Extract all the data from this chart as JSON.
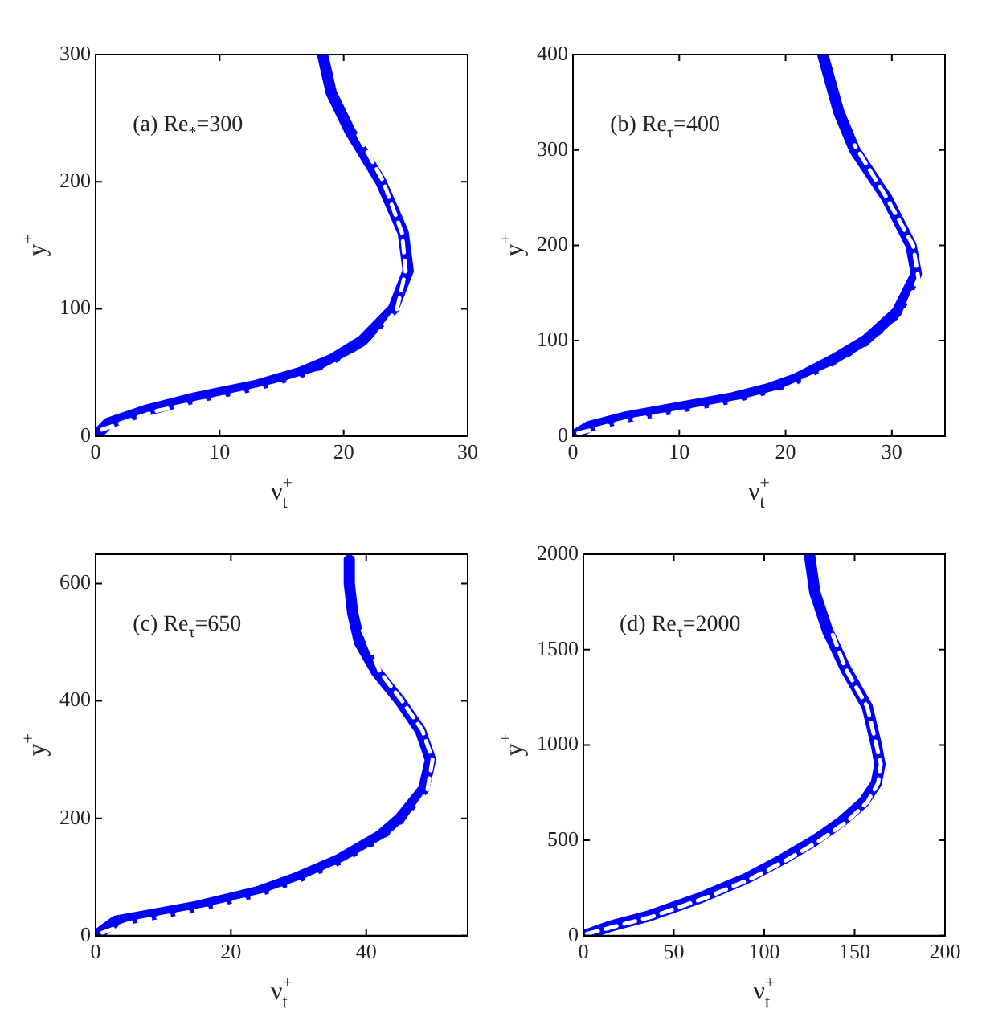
{
  "chart_data": [
    {
      "type": "line",
      "xlabel": "ν$_{t}$$^{+}$",
      "ylabel": "y$^{+}$",
      "annotations": [
        "(a) Re$_{*}$=300"
      ],
      "xlim": [
        0,
        30
      ],
      "xticks": [
        0,
        10,
        20,
        30
      ],
      "ylim": [
        0,
        300
      ],
      "yticks": [
        0,
        100,
        200,
        300
      ],
      "series": [
        {
          "color": "#0000ff",
          "line_style": "solid",
          "x": [
            0,
            1,
            4,
            8,
            13,
            16.5,
            19,
            21.5,
            24,
            25.2,
            24.8,
            23,
            20.5,
            19,
            18.3
          ],
          "values": [
            0,
            10,
            20,
            30,
            40,
            50,
            60,
            75,
            100,
            130,
            160,
            200,
            240,
            270,
            300
          ]
        },
        {
          "color": "#ffffff",
          "line_style": "dashed",
          "x": [
            0.5,
            5,
            10,
            14.5,
            18,
            22,
            24.3,
            25,
            24.7,
            23.2,
            21
          ],
          "values": [
            5,
            20,
            30,
            40,
            50,
            70,
            100,
            130,
            160,
            200,
            240
          ]
        }
      ]
    },
    {
      "type": "line",
      "xlabel": "ν$_{t}$$^{+}$",
      "ylabel": "y$^{+}$",
      "annotations": [
        "(b) Re$_{τ}$=400"
      ],
      "xlim": [
        0,
        35
      ],
      "xticks": [
        0,
        10,
        20,
        30
      ],
      "ylim": [
        0,
        400
      ],
      "yticks": [
        0,
        100,
        200,
        300,
        400
      ],
      "series": [
        {
          "color": "#0000ff",
          "line_style": "solid",
          "x": [
            0,
            1.5,
            5,
            10,
            15,
            18.5,
            21,
            24.5,
            27.5,
            30.5,
            32.3,
            31.8,
            29.5,
            26.5,
            25,
            23.5
          ],
          "values": [
            0,
            10,
            20,
            30,
            40,
            50,
            60,
            80,
            100,
            130,
            170,
            200,
            250,
            300,
            340,
            400
          ]
        },
        {
          "color": "#ffffff",
          "line_style": "dashed",
          "x": [
            0.5,
            5.5,
            11,
            16,
            19.5,
            25,
            28,
            31,
            32.5,
            32,
            29.5,
            26.5
          ],
          "values": [
            3,
            17,
            27,
            37,
            47,
            75,
            95,
            125,
            165,
            200,
            250,
            305
          ]
        }
      ]
    },
    {
      "type": "line",
      "xlabel": "ν$_{t}$$^{+}$",
      "ylabel": "y$^{+}$",
      "annotations": [
        "(c) Re$_{τ}$=650"
      ],
      "xlim": [
        0,
        55
      ],
      "xticks": [
        0,
        20,
        40
      ],
      "ylim": [
        0,
        650
      ],
      "yticks": [
        0,
        200,
        400,
        600
      ],
      "series": [
        {
          "color": "#0000ff",
          "line_style": "solid",
          "x": [
            0,
            3,
            15,
            24,
            30,
            36,
            42,
            45,
            48.5,
            49.5,
            48,
            45,
            41.5,
            39,
            38,
            37.5,
            37.5
          ],
          "values": [
            0,
            25,
            50,
            75,
            100,
            130,
            170,
            200,
            250,
            300,
            350,
            400,
            450,
            500,
            550,
            600,
            640
          ]
        },
        {
          "color": "#ffffff",
          "line_style": "dashed",
          "x": [
            1,
            5,
            16,
            25,
            31,
            37,
            43,
            46,
            49,
            49.8,
            48.3,
            45.3,
            42,
            39.5
          ],
          "values": [
            5,
            22,
            45,
            70,
            95,
            125,
            165,
            195,
            245,
            300,
            350,
            400,
            450,
            520
          ]
        }
      ]
    },
    {
      "type": "line",
      "xlabel": "ν$_{t}$$^{+}$",
      "ylabel": "y$^{+}$",
      "annotations": [
        "(d) Re$_{τ}$=2000"
      ],
      "xlim": [
        0,
        200
      ],
      "xticks": [
        0,
        50,
        100,
        150,
        200
      ],
      "ylim": [
        0,
        2000
      ],
      "yticks": [
        0,
        500,
        1000,
        1500,
        2000
      ],
      "series": [
        {
          "color": "#0000ff",
          "line_style": "solid",
          "x": [
            0,
            15,
            35,
            65,
            90,
            110,
            128,
            143,
            155,
            162,
            164,
            162,
            157,
            145,
            135,
            128,
            125
          ],
          "values": [
            0,
            50,
            100,
            200,
            300,
            400,
            500,
            600,
            700,
            800,
            900,
            1000,
            1200,
            1400,
            1600,
            1800,
            2000
          ]
        },
        {
          "color": "#ffffff",
          "line_style": "dashed",
          "x": [
            2,
            18,
            38,
            68,
            93,
            113,
            131,
            146,
            157,
            163,
            164.5,
            162,
            157,
            145,
            137
          ],
          "values": [
            10,
            50,
            100,
            200,
            300,
            400,
            500,
            600,
            700,
            800,
            900,
            1000,
            1200,
            1400,
            1600
          ]
        }
      ]
    }
  ]
}
